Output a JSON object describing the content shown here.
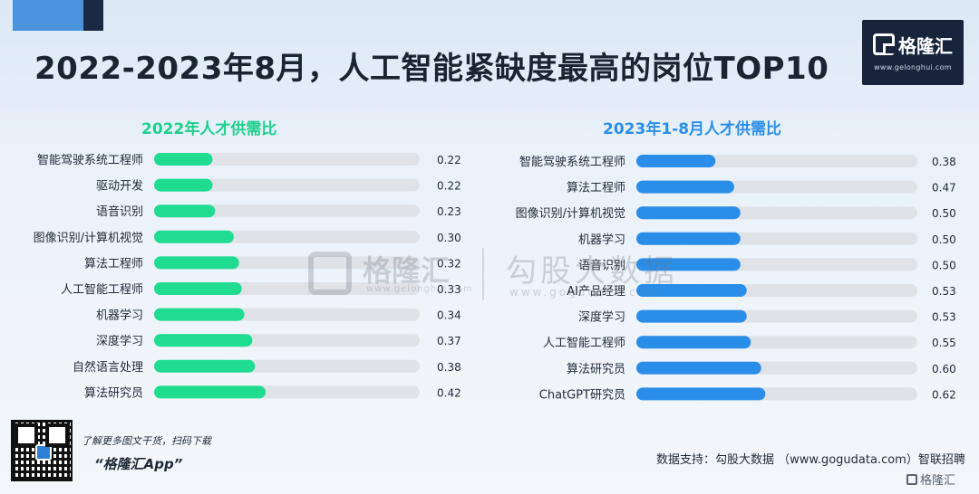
{
  "header": {
    "title": "2022-2023年8月，人工智能紧缺度最高的岗位TOP10"
  },
  "logo": {
    "name": "格隆汇",
    "url": "www.gelonghui.com"
  },
  "watermark": {
    "name": "格隆汇",
    "url": "www.gelonghui.com",
    "brand": "勾股大数据",
    "url2": "www.gogudata.com"
  },
  "colors": {
    "left_bar": "#1fdc90",
    "right_bar": "#2a8ee8",
    "track": "#dfe3e8"
  },
  "chart_data": [
    {
      "type": "bar",
      "orientation": "horizontal",
      "title": "2022年人才供需比",
      "categories": [
        "智能驾驶系统工程师",
        "驱动开发",
        "语音识别",
        "图像识别/计算机视觉",
        "算法工程师",
        "人工智能工程师",
        "机器学习",
        "深度学习",
        "自然语言处理",
        "算法研究员"
      ],
      "values": [
        0.22,
        0.22,
        0.23,
        0.3,
        0.32,
        0.33,
        0.34,
        0.37,
        0.38,
        0.42
      ],
      "value_labels": [
        "0.22",
        "0.22",
        "0.23",
        "0.30",
        "0.32",
        "0.33",
        "0.34",
        "0.37",
        "0.38",
        "0.42"
      ],
      "xlim": [
        0,
        1.0
      ],
      "grid": false,
      "legend": "none"
    },
    {
      "type": "bar",
      "orientation": "horizontal",
      "title": "2023年1-8月人才供需比",
      "categories": [
        "智能驾驶系统工程师",
        "算法工程师",
        "图像识别/计算机视觉",
        "机器学习",
        "语音识别",
        "AI产品经理",
        "深度学习",
        "人工智能工程师",
        "算法研究员",
        "ChatGPT研究员"
      ],
      "values": [
        0.38,
        0.47,
        0.5,
        0.5,
        0.5,
        0.53,
        0.53,
        0.55,
        0.6,
        0.62
      ],
      "value_labels": [
        "0.38",
        "0.47",
        "0.50",
        "0.50",
        "0.50",
        "0.53",
        "0.53",
        "0.55",
        "0.60",
        "0.62"
      ],
      "xlim": [
        0,
        1.35
      ],
      "grid": false,
      "legend": "none"
    }
  ],
  "footer": {
    "promo_line": "了解更多图文干货，扫码下载",
    "promo_app": "“格隆汇App”",
    "source": "数据支持：勾股大数据 （www.gogudata.com）智联招聘",
    "corner_logo": "格隆汇"
  }
}
